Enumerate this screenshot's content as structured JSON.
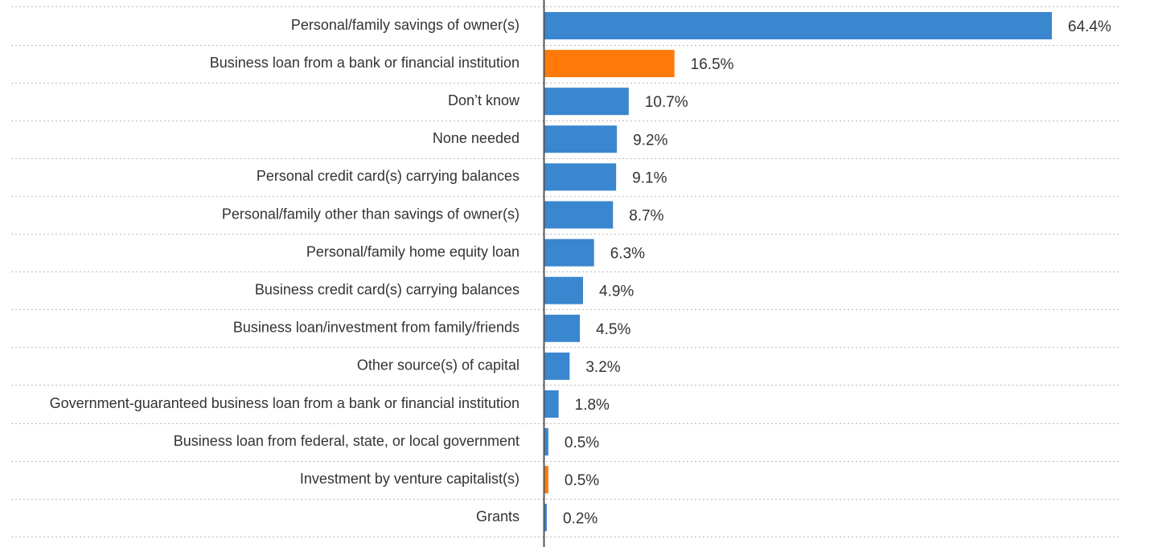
{
  "chart_data": {
    "type": "bar",
    "orientation": "horizontal",
    "title": "",
    "xlabel": "",
    "ylabel": "",
    "xlim": [
      0,
      64.4
    ],
    "grid": true,
    "legend": "none",
    "value_suffix": "%",
    "colors": {
      "default": "#3a86cf",
      "highlight": "#ff7a0b",
      "axis": "#555555",
      "grid": "#bbbbbb"
    },
    "categories": [
      "Personal/family savings of owner(s)",
      "Business loan from a bank or financial institution",
      "Don’t know",
      "None needed",
      "Personal credit card(s) carrying balances",
      "Personal/family other than savings of owner(s)",
      "Personal/family home equity loan",
      "Business credit card(s) carrying balances",
      "Business loan/investment from family/friends",
      "Other source(s) of capital",
      "Government-guaranteed business loan from a bank or financial institution",
      "Business loan from federal, state, or local government",
      "Investment by venture capitalist(s)",
      "Grants"
    ],
    "values": [
      64.4,
      16.5,
      10.7,
      9.2,
      9.1,
      8.7,
      6.3,
      4.9,
      4.5,
      3.2,
      1.8,
      0.5,
      0.5,
      0.2
    ],
    "value_labels": [
      "64.4%",
      "16.5%",
      "10.7%",
      "9.2%",
      "9.1%",
      "8.7%",
      "6.3%",
      "4.9%",
      "4.5%",
      "3.2%",
      "1.8%",
      "0.5%",
      "0.5%",
      "0.2%"
    ],
    "highlighted": [
      "Business loan from a bank or financial institution",
      "Investment by venture capitalist(s)"
    ]
  }
}
